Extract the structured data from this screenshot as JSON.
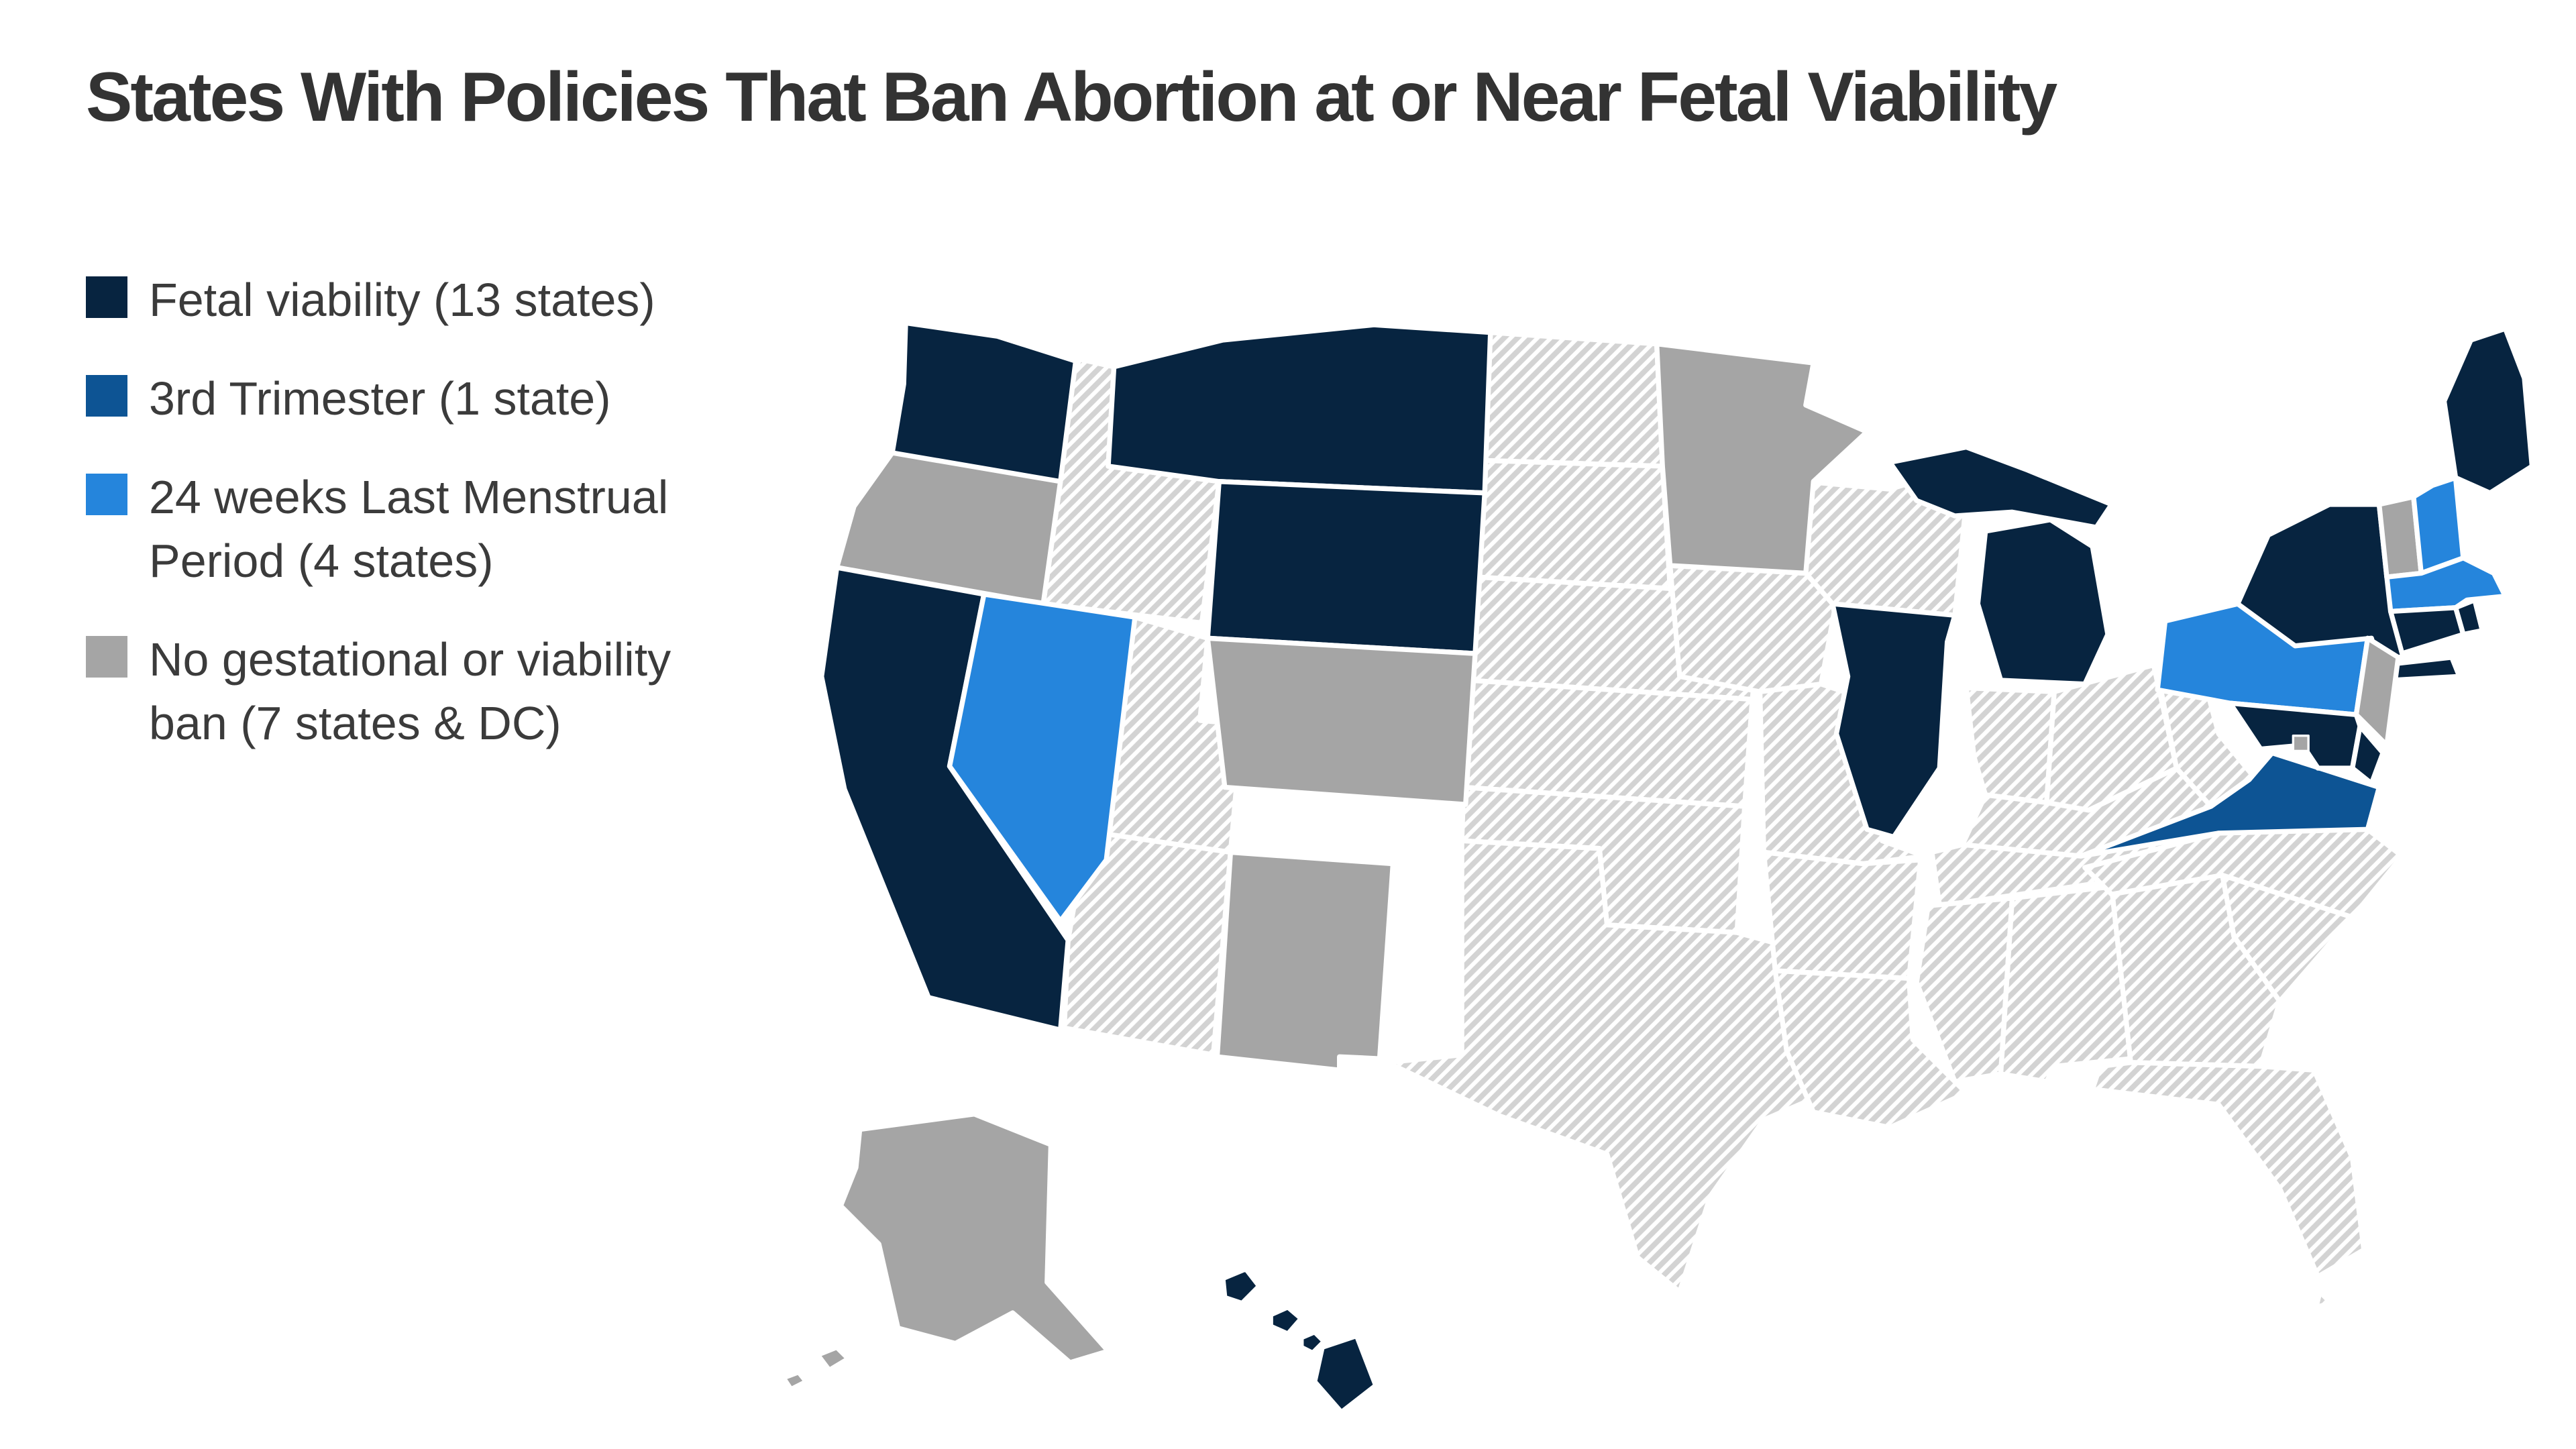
{
  "title": "States With Policies That Ban Abortion at or Near Fetal Viability",
  "colors": {
    "viability": "#072440",
    "third_trimester": "#0d5494",
    "lmp_24_weeks": "#2585dc",
    "no_ban": "#a5a5a5",
    "hatch_stripe": "#d3d3d3",
    "state_border": "#ffffff",
    "title_text": "#333333",
    "legend_text": "#3b3b3b"
  },
  "legend": [
    {
      "id": "viability",
      "label": "Fetal viability (13 states)"
    },
    {
      "id": "third_trimester",
      "label": "3rd Trimester (1 state)"
    },
    {
      "id": "lmp_24_weeks",
      "label": "24 weeks Last Menstrual Period (4 states)"
    },
    {
      "id": "no_ban",
      "label": "No gestational or viability ban (7 states & DC)"
    }
  ],
  "chart_data": {
    "type": "choropleth_map",
    "title": "States With Policies That Ban Abortion at or Near Fetal Viability",
    "legend_position": "top-left",
    "categories": {
      "viability": "Fetal viability (13 states)",
      "third_trimester": "3rd Trimester (1 state)",
      "lmp_24_weeks": "24 weeks Last Menstrual Period (4 states)",
      "no_ban": "No gestational or viability ban (7 states & DC)",
      "hatched": "No category shown (diagonal hatch pattern)"
    }
  },
  "map": {
    "states": [
      {
        "abbr": "WA",
        "name": "Washington",
        "category": "viability"
      },
      {
        "abbr": "OR",
        "name": "Oregon",
        "category": "no_ban"
      },
      {
        "abbr": "CA",
        "name": "California",
        "category": "viability"
      },
      {
        "abbr": "NV",
        "name": "Nevada",
        "category": "lmp_24_weeks"
      },
      {
        "abbr": "ID",
        "name": "Idaho",
        "category": "hatched"
      },
      {
        "abbr": "MT",
        "name": "Montana",
        "category": "viability"
      },
      {
        "abbr": "WY",
        "name": "Wyoming",
        "category": "viability"
      },
      {
        "abbr": "UT",
        "name": "Utah",
        "category": "hatched"
      },
      {
        "abbr": "CO",
        "name": "Colorado",
        "category": "no_ban"
      },
      {
        "abbr": "AZ",
        "name": "Arizona",
        "category": "hatched"
      },
      {
        "abbr": "NM",
        "name": "New Mexico",
        "category": "no_ban"
      },
      {
        "abbr": "ND",
        "name": "North Dakota",
        "category": "hatched"
      },
      {
        "abbr": "SD",
        "name": "South Dakota",
        "category": "hatched"
      },
      {
        "abbr": "NE",
        "name": "Nebraska",
        "category": "hatched"
      },
      {
        "abbr": "KS",
        "name": "Kansas",
        "category": "hatched"
      },
      {
        "abbr": "OK",
        "name": "Oklahoma",
        "category": "hatched"
      },
      {
        "abbr": "TX",
        "name": "Texas",
        "category": "hatched"
      },
      {
        "abbr": "MN",
        "name": "Minnesota",
        "category": "no_ban"
      },
      {
        "abbr": "IA",
        "name": "Iowa",
        "category": "hatched"
      },
      {
        "abbr": "MO",
        "name": "Missouri",
        "category": "hatched"
      },
      {
        "abbr": "AR",
        "name": "Arkansas",
        "category": "hatched"
      },
      {
        "abbr": "LA",
        "name": "Louisiana",
        "category": "hatched"
      },
      {
        "abbr": "WI",
        "name": "Wisconsin",
        "category": "hatched"
      },
      {
        "abbr": "IL",
        "name": "Illinois",
        "category": "viability"
      },
      {
        "abbr": "MI",
        "name": "Michigan",
        "category": "viability"
      },
      {
        "abbr": "IN",
        "name": "Indiana",
        "category": "hatched"
      },
      {
        "abbr": "OH",
        "name": "Ohio",
        "category": "hatched"
      },
      {
        "abbr": "KY",
        "name": "Kentucky",
        "category": "hatched"
      },
      {
        "abbr": "TN",
        "name": "Tennessee",
        "category": "hatched"
      },
      {
        "abbr": "MS",
        "name": "Mississippi",
        "category": "hatched"
      },
      {
        "abbr": "AL",
        "name": "Alabama",
        "category": "hatched"
      },
      {
        "abbr": "GA",
        "name": "Georgia",
        "category": "hatched"
      },
      {
        "abbr": "FL",
        "name": "Florida",
        "category": "hatched"
      },
      {
        "abbr": "SC",
        "name": "South Carolina",
        "category": "hatched"
      },
      {
        "abbr": "NC",
        "name": "North Carolina",
        "category": "hatched"
      },
      {
        "abbr": "VA",
        "name": "Virginia",
        "category": "third_trimester"
      },
      {
        "abbr": "WV",
        "name": "West Virginia",
        "category": "hatched"
      },
      {
        "abbr": "PA",
        "name": "Pennsylvania",
        "category": "lmp_24_weeks"
      },
      {
        "abbr": "NY",
        "name": "New York",
        "category": "viability"
      },
      {
        "abbr": "NJ",
        "name": "New Jersey",
        "category": "no_ban"
      },
      {
        "abbr": "MD",
        "name": "Maryland",
        "category": "viability"
      },
      {
        "abbr": "DE",
        "name": "Delaware",
        "category": "viability"
      },
      {
        "abbr": "VT",
        "name": "Vermont",
        "category": "no_ban"
      },
      {
        "abbr": "NH",
        "name": "New Hampshire",
        "category": "lmp_24_weeks"
      },
      {
        "abbr": "MA",
        "name": "Massachusetts",
        "category": "lmp_24_weeks"
      },
      {
        "abbr": "RI",
        "name": "Rhode Island",
        "category": "viability"
      },
      {
        "abbr": "CT",
        "name": "Connecticut",
        "category": "viability"
      },
      {
        "abbr": "ME",
        "name": "Maine",
        "category": "viability"
      },
      {
        "abbr": "AK",
        "name": "Alaska",
        "category": "no_ban"
      },
      {
        "abbr": "HI",
        "name": "Hawaii",
        "category": "viability"
      },
      {
        "abbr": "DC",
        "name": "District of Columbia",
        "category": "no_ban"
      }
    ]
  }
}
